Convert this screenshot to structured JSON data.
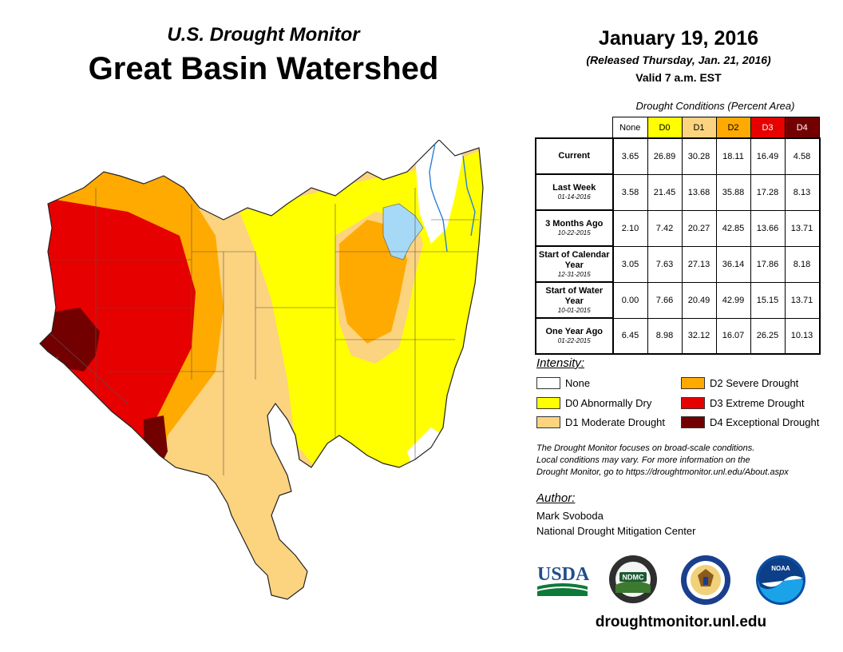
{
  "header": {
    "subtitle": "U.S. Drought Monitor",
    "title": "Great Basin Watershed",
    "date": "January 19, 2016",
    "released": "(Released Thursday, Jan. 21, 2016)",
    "valid": "Valid 7 a.m. EST"
  },
  "colors": {
    "none": "#ffffff",
    "d0": "#ffff00",
    "d1": "#fcd37f",
    "d2": "#ffaa00",
    "d3": "#e60000",
    "d4": "#730000",
    "water": "#a6d9f5",
    "river": "#2b7fd6"
  },
  "table": {
    "caption": "Drought Conditions (Percent Area)",
    "columns": [
      "None",
      "D0",
      "D1",
      "D2",
      "D3",
      "D4"
    ],
    "rows": [
      {
        "label": "Current",
        "sub": "",
        "values": [
          "3.65",
          "26.89",
          "30.28",
          "18.11",
          "16.49",
          "4.58"
        ]
      },
      {
        "label": "Last Week",
        "sub": "01-14-2016",
        "values": [
          "3.58",
          "21.45",
          "13.68",
          "35.88",
          "17.28",
          "8.13"
        ]
      },
      {
        "label": "3 Months Ago",
        "sub": "10-22-2015",
        "values": [
          "2.10",
          "7.42",
          "20.27",
          "42.85",
          "13.66",
          "13.71"
        ]
      },
      {
        "label": "Start of Calendar Year",
        "sub": "12-31-2015",
        "values": [
          "3.05",
          "7.63",
          "27.13",
          "36.14",
          "17.86",
          "8.18"
        ]
      },
      {
        "label": "Start of Water Year",
        "sub": "10-01-2015",
        "values": [
          "0.00",
          "7.66",
          "20.49",
          "42.99",
          "15.15",
          "13.71"
        ]
      },
      {
        "label": "One Year Ago",
        "sub": "01-22-2015",
        "values": [
          "6.45",
          "8.98",
          "32.12",
          "16.07",
          "26.25",
          "10.13"
        ]
      }
    ]
  },
  "legend": {
    "title": "Intensity:",
    "items": [
      {
        "key": "none",
        "label": "None"
      },
      {
        "key": "d0",
        "label": "D0 Abnormally Dry"
      },
      {
        "key": "d1",
        "label": "D1 Moderate Drought"
      },
      {
        "key": "d2",
        "label": "D2 Severe Drought"
      },
      {
        "key": "d3",
        "label": "D3 Extreme Drought"
      },
      {
        "key": "d4",
        "label": "D4 Exceptional Drought"
      }
    ]
  },
  "note": {
    "line1": "The Drought Monitor focuses on broad-scale conditions.",
    "line2": "Local conditions may vary. For more information on the",
    "line3": "Drought Monitor, go to https://droughtmonitor.unl.edu/About.aspx"
  },
  "author": {
    "label": "Author:",
    "name": "Mark Svoboda",
    "org": "National Drought Mitigation Center"
  },
  "logos": {
    "usda": "USDA",
    "ndmc": "NDMC",
    "noaa": "NOAA"
  },
  "footer": {
    "url": "droughtmonitor.unl.edu"
  }
}
